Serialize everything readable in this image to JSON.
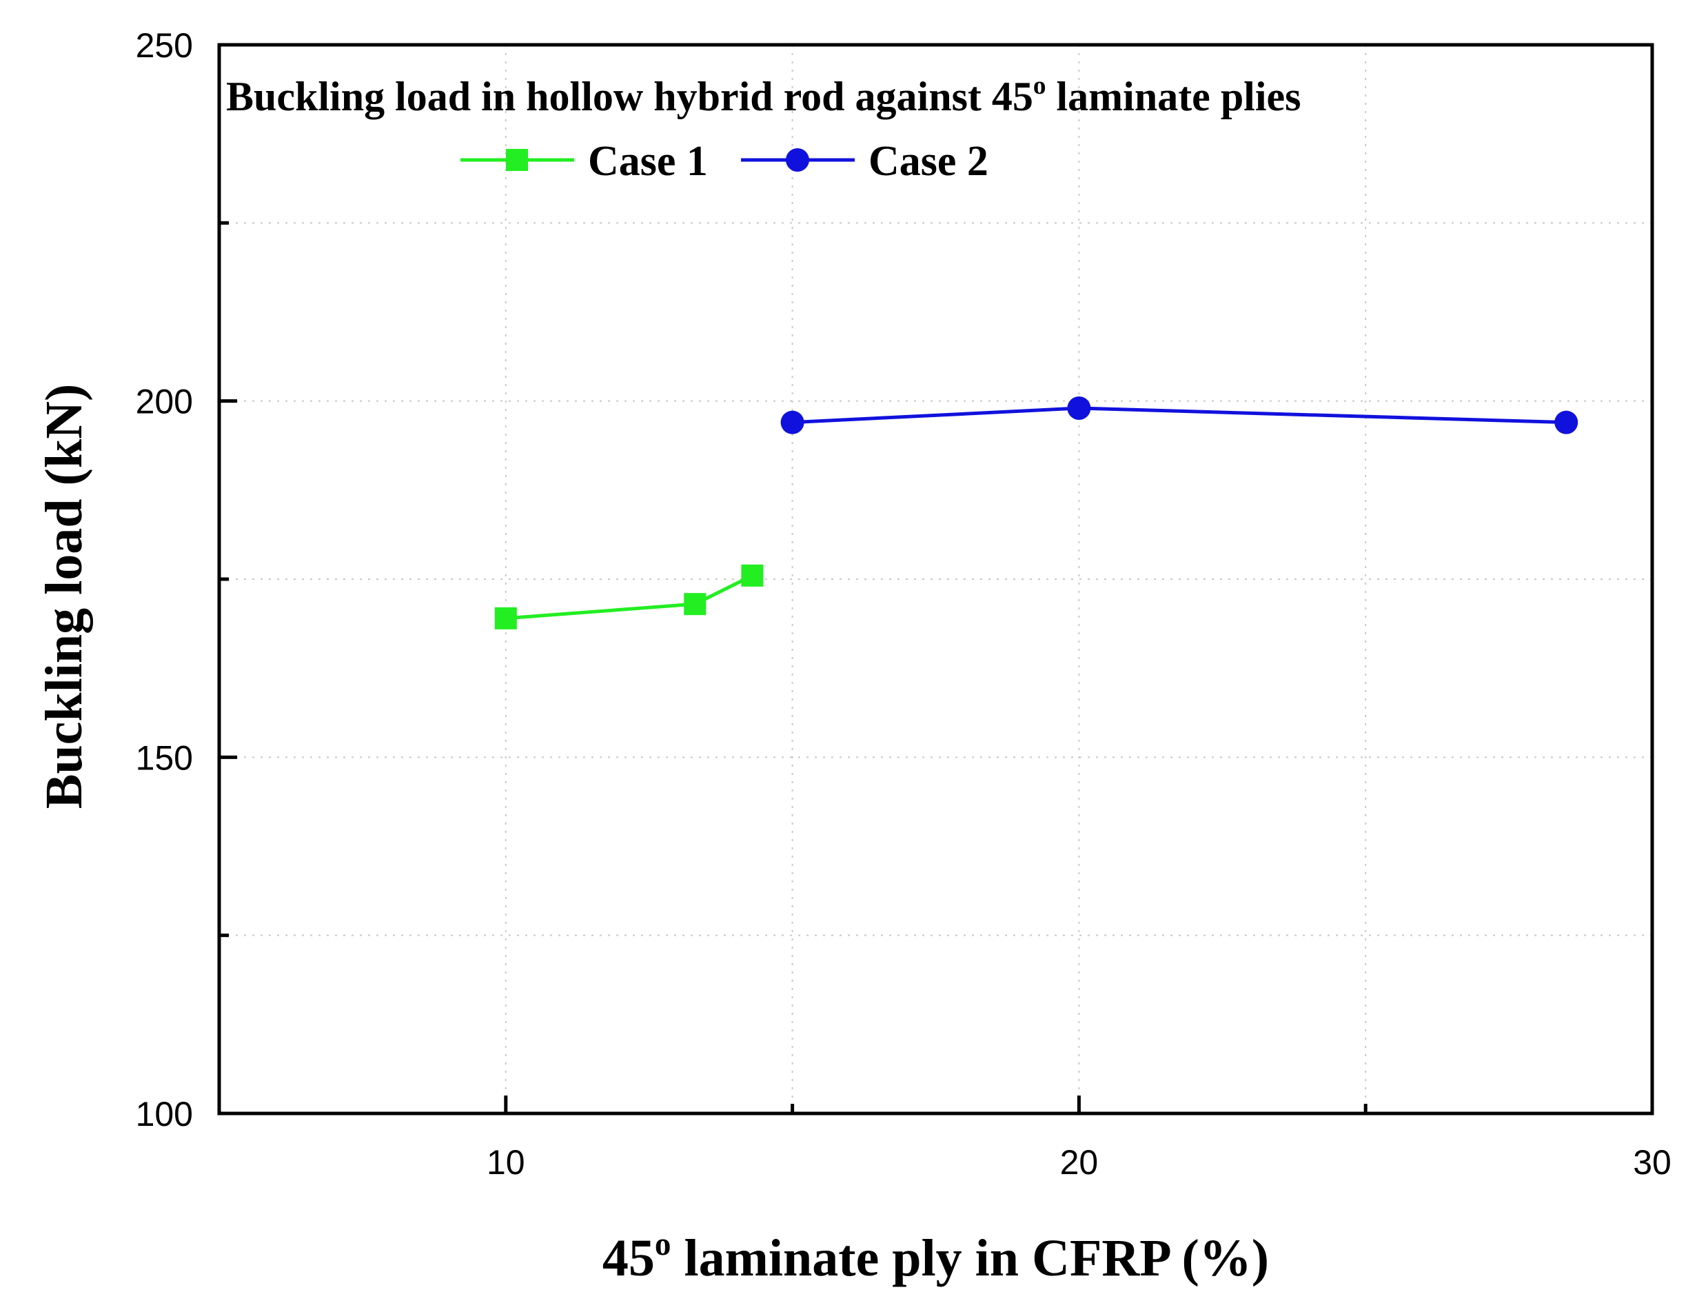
{
  "chart_data": {
    "type": "line",
    "title": "Buckling load in hollow hybrid rod against 45o laminate plies",
    "title_parts": {
      "before": "Buckling load in hollow hybrid rod against 45",
      "sup": "o",
      "after": " laminate plies"
    },
    "xlabel": "45o laminate ply in CFRP (%)",
    "xlabel_parts": {
      "before": "45",
      "sup": "o",
      "after": " laminate ply in CFRP (%)"
    },
    "ylabel": "Buckling load (kN)",
    "xlim": [
      5,
      30
    ],
    "ylim": [
      100,
      250
    ],
    "x_ticks": [
      10,
      20,
      30
    ],
    "x_tick_labels": [
      "10",
      "20",
      "30"
    ],
    "x_minor_ticks": [
      15,
      25
    ],
    "y_ticks": [
      100,
      150,
      200,
      250
    ],
    "y_tick_labels": [
      "100",
      "150",
      "200",
      "250"
    ],
    "y_minor_ticks": [
      125,
      175,
      225
    ],
    "grid": true,
    "legend_position": "top-center",
    "series": [
      {
        "name": "Case 1",
        "color": "#22ee22",
        "marker": "square",
        "x": [
          10.0,
          13.3,
          14.3
        ],
        "y": [
          169.5,
          171.5,
          175.5
        ]
      },
      {
        "name": "Case 2",
        "color": "#1111dd",
        "marker": "circle",
        "x": [
          15.0,
          20.0,
          28.5
        ],
        "y": [
          197.0,
          199.0,
          197.0
        ]
      }
    ]
  }
}
